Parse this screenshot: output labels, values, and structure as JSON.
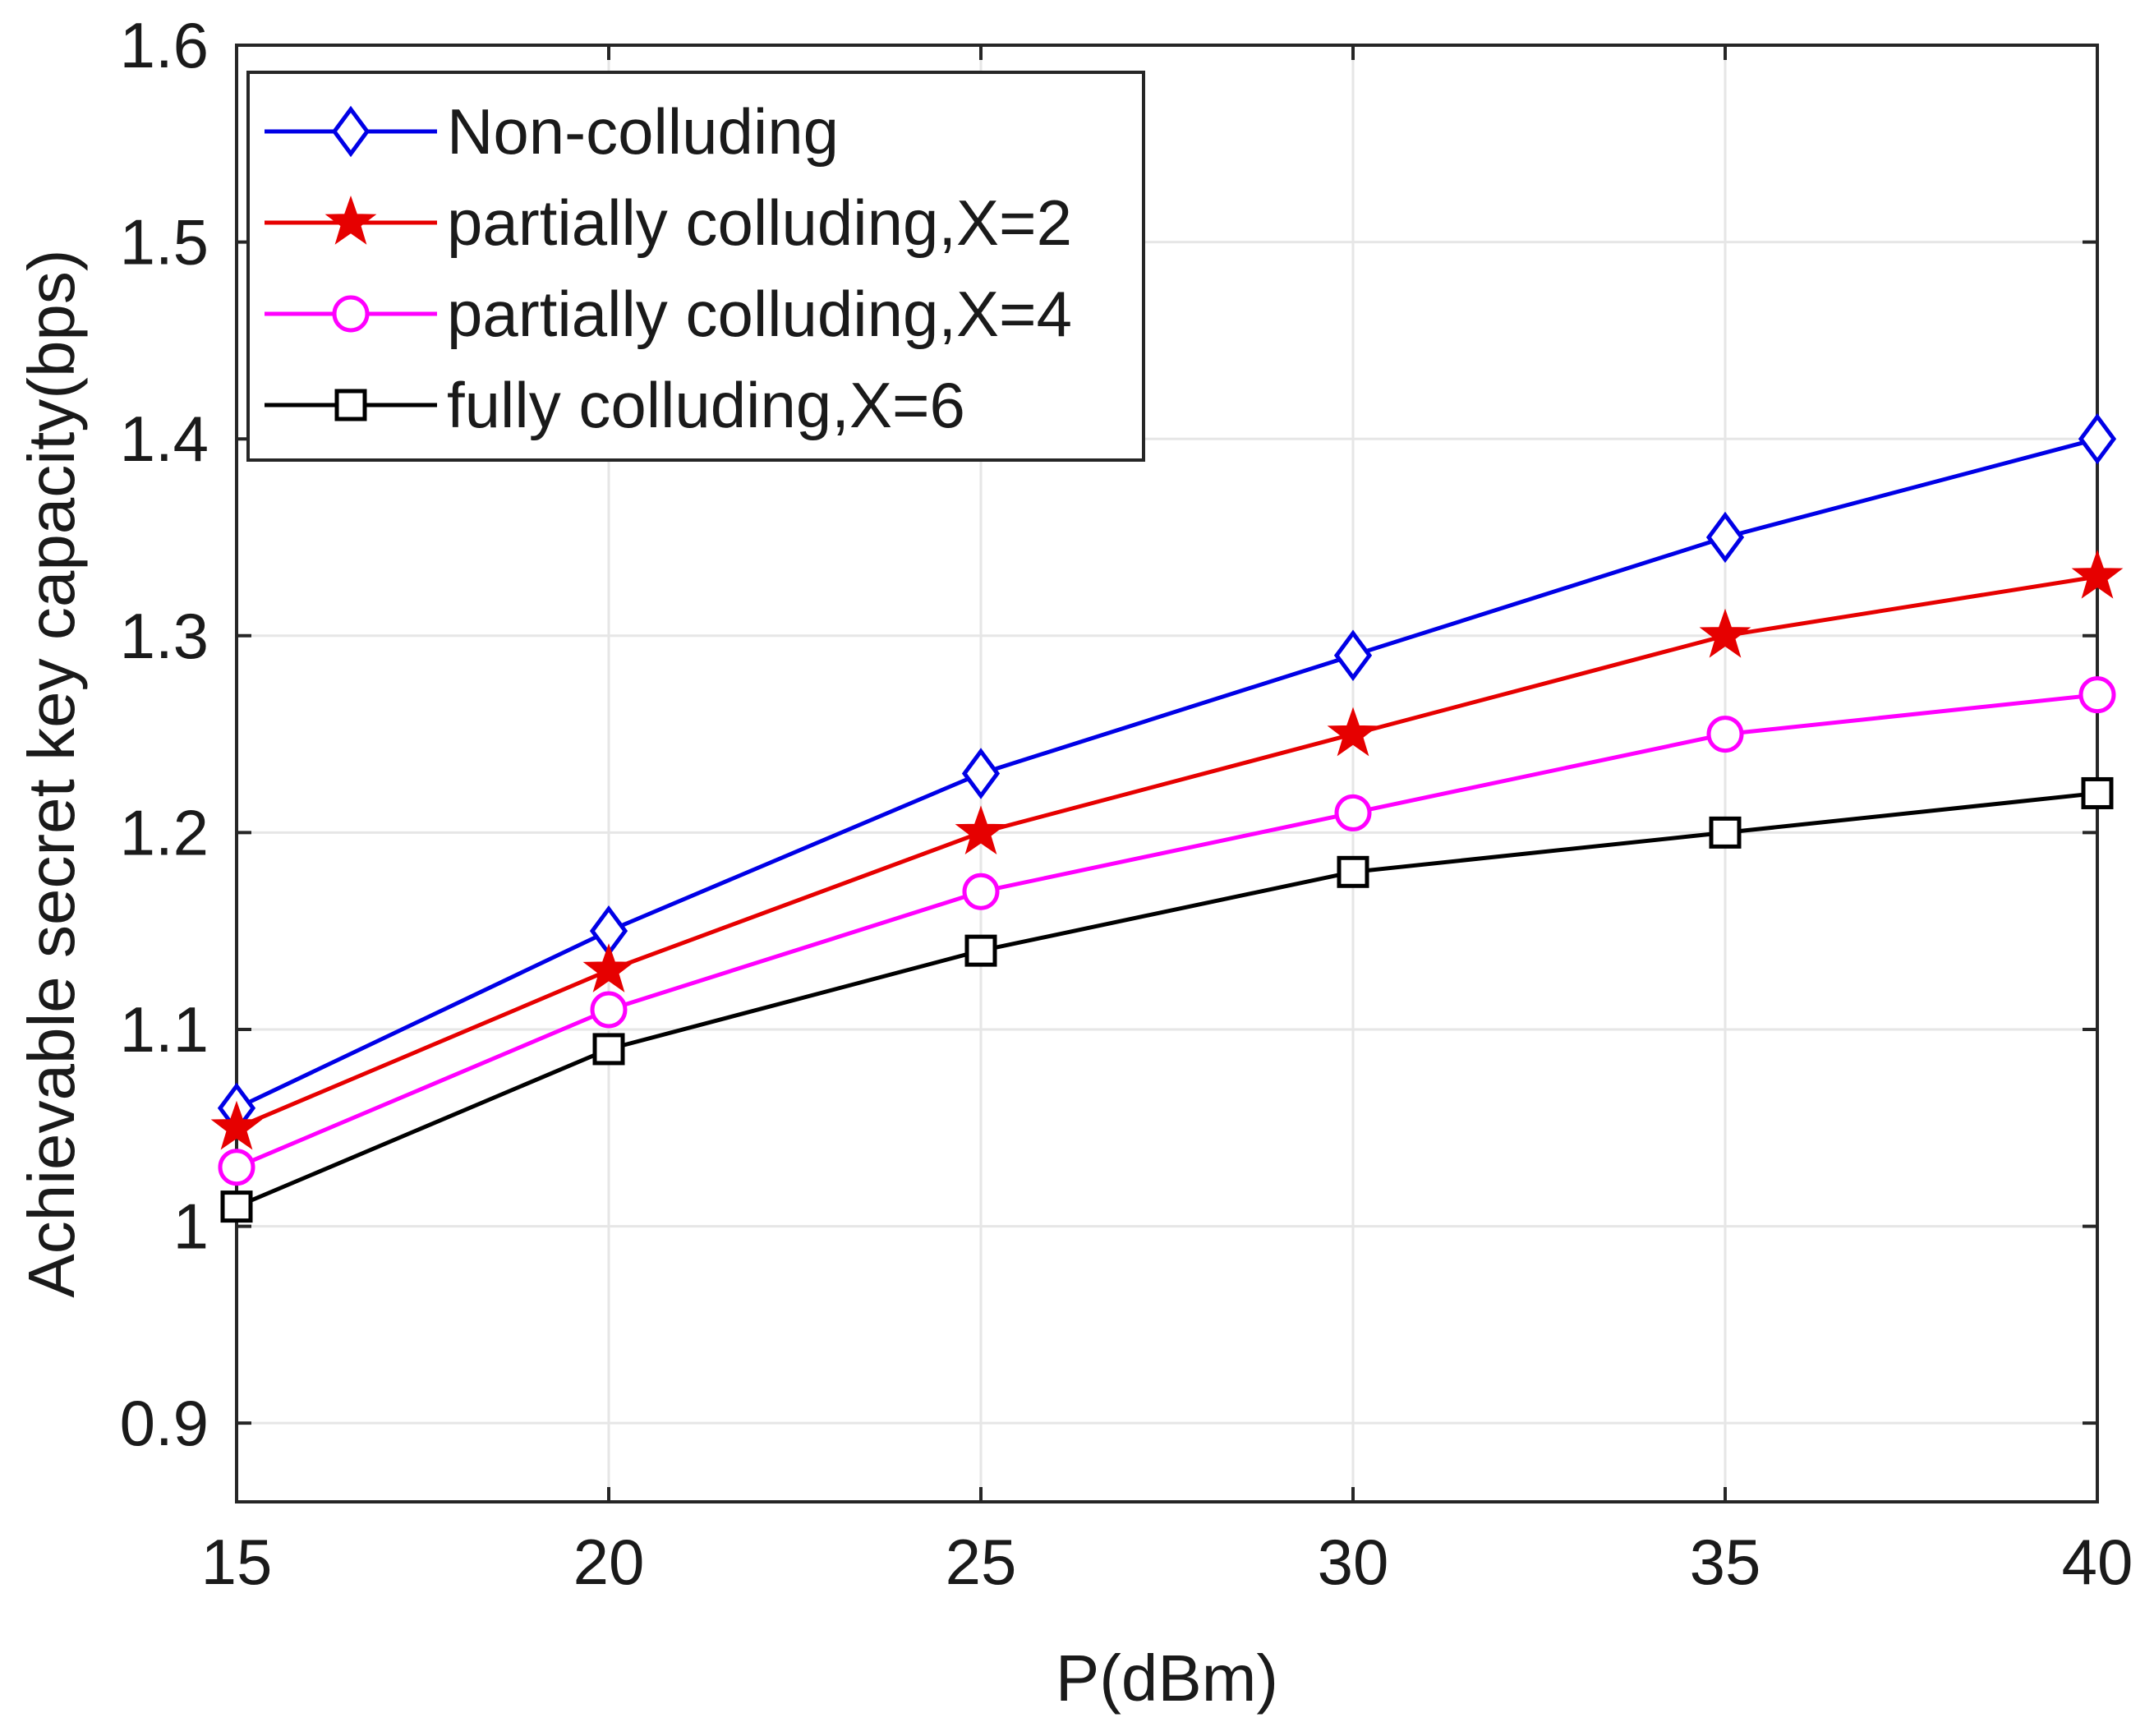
{
  "chart_data": {
    "type": "line",
    "title": "",
    "xlabel": "P(dBm)",
    "ylabel": "Achievable secret key capacity(bps)",
    "x": [
      15,
      20,
      25,
      30,
      35,
      40
    ],
    "xlim": [
      15,
      40
    ],
    "ylim": [
      0.86,
      1.6
    ],
    "xticks": [
      15,
      20,
      25,
      30,
      35,
      40
    ],
    "yticks": [
      0.9,
      1,
      1.1,
      1.2,
      1.3,
      1.4,
      1.5,
      1.6
    ],
    "xtick_labels": [
      "15",
      "20",
      "25",
      "30",
      "35",
      "40"
    ],
    "ytick_labels": [
      "0.9",
      "1",
      "1.1",
      "1.2",
      "1.3",
      "1.4",
      "1.5",
      "1.6"
    ],
    "grid": true,
    "legend_position": "top-left",
    "series": [
      {
        "name": "Non-colluding",
        "color": "#0000e6",
        "marker": "diamond",
        "values": [
          1.06,
          1.15,
          1.23,
          1.29,
          1.35,
          1.4
        ]
      },
      {
        "name": "partially colluding,X=2",
        "color": "#e60000",
        "marker": "star",
        "values": [
          1.05,
          1.13,
          1.2,
          1.25,
          1.3,
          1.33
        ]
      },
      {
        "name": "partially colluding,X=4",
        "color": "#ff00ff",
        "marker": "circle",
        "values": [
          1.03,
          1.11,
          1.17,
          1.21,
          1.25,
          1.27
        ]
      },
      {
        "name": "fully colluding,X=6",
        "color": "#000000",
        "marker": "square",
        "values": [
          1.01,
          1.09,
          1.14,
          1.18,
          1.2,
          1.22
        ]
      }
    ]
  }
}
